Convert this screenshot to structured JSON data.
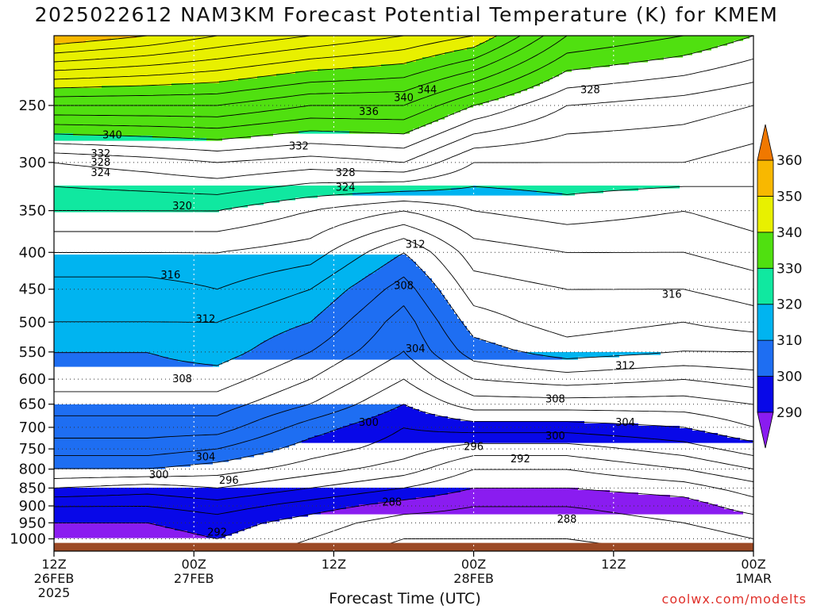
{
  "chart_data": {
    "type": "contour",
    "title": "2025022612 NAM3KM Forecast Potential Temperature (K) for KMEM",
    "xlabel": "Forecast Time (UTC)",
    "credit": "coolwx.com/modelts",
    "y_axis": {
      "quantity": "pressure (hPa)",
      "scale": "log",
      "inverted": true,
      "range": [
        1040,
        200
      ],
      "ticks": [
        250,
        300,
        350,
        400,
        450,
        500,
        550,
        600,
        650,
        700,
        750,
        800,
        850,
        900,
        950,
        1000
      ]
    },
    "x_axis": {
      "range_hours": [
        0,
        60
      ],
      "ticks": [
        {
          "hour": 0,
          "lines": [
            "12Z",
            "26FEB",
            "2025"
          ]
        },
        {
          "hour": 12,
          "lines": [
            "00Z",
            "27FEB"
          ]
        },
        {
          "hour": 24,
          "lines": [
            "12Z"
          ]
        },
        {
          "hour": 36,
          "lines": [
            "00Z",
            "28FEB"
          ]
        },
        {
          "hour": 48,
          "lines": [
            "12Z"
          ]
        },
        {
          "hour": 60,
          "lines": [
            "00Z",
            "1MAR"
          ]
        }
      ]
    },
    "grid": true,
    "contour_interval_K": 2,
    "fill_levels": [
      {
        "lo": 280,
        "hi": 290,
        "color": "#8a1cf0"
      },
      {
        "lo": 290,
        "hi": 300,
        "color": "#0808e8"
      },
      {
        "lo": 300,
        "hi": 310,
        "color": "#1e6ef2"
      },
      {
        "lo": 310,
        "hi": 320,
        "color": "#00b4f0"
      },
      {
        "lo": 320,
        "hi": 330,
        "color": "#10e8a0"
      },
      {
        "lo": 330,
        "hi": 340,
        "color": "#50e010"
      },
      {
        "lo": 340,
        "hi": 350,
        "color": "#e8f000"
      },
      {
        "lo": 350,
        "hi": 360,
        "color": "#f8b800"
      },
      {
        "lo": 360,
        "hi": 400,
        "color": "#f07800"
      }
    ],
    "colorbar_ticks": [
      290,
      300,
      310,
      320,
      330,
      340,
      350,
      360
    ],
    "terrain_color": "#9c4a26",
    "surface_pressure": 1013,
    "profiles": [
      {
        "hour": 0,
        "p": [
          1000,
          950,
          900,
          850,
          800,
          750,
          700,
          650,
          600,
          550,
          500,
          450,
          400,
          350,
          300,
          250,
          200
        ],
        "theta": [
          289,
          290,
          292,
          296,
          300,
          303,
          305,
          307,
          309,
          310,
          312,
          313,
          316,
          320,
          324,
          336,
          352
        ]
      },
      {
        "hour": 8,
        "p": [
          1000,
          950,
          900,
          850,
          800,
          750,
          700,
          650,
          600,
          550,
          500,
          450,
          400,
          350,
          300,
          250,
          200
        ],
        "theta": [
          289,
          290,
          292,
          295,
          300,
          303,
          305,
          307,
          309,
          310,
          312,
          313,
          316,
          320,
          325,
          336,
          350
        ]
      },
      {
        "hour": 14,
        "p": [
          1000,
          950,
          900,
          850,
          800,
          750,
          700,
          650,
          600,
          550,
          500,
          450,
          400,
          350,
          300,
          250,
          200
        ],
        "theta": [
          290,
          291,
          293,
          296,
          299,
          302,
          305,
          307,
          309,
          311,
          312,
          314,
          316,
          320,
          326,
          336,
          348
        ]
      },
      {
        "hour": 22,
        "p": [
          1000,
          950,
          900,
          850,
          800,
          750,
          700,
          650,
          600,
          550,
          500,
          450,
          400,
          350,
          300,
          250,
          200
        ],
        "theta": [
          288,
          289,
          291,
          294,
          297,
          299,
          301,
          304,
          306,
          308,
          310,
          312,
          315,
          318,
          325,
          334,
          346
        ]
      },
      {
        "hour": 30,
        "p": [
          1000,
          950,
          900,
          850,
          800,
          750,
          700,
          650,
          600,
          550,
          500,
          450,
          400,
          350,
          300,
          250,
          200
        ],
        "theta": [
          286,
          287,
          289,
          292,
          295,
          297,
          298,
          300,
          302,
          304,
          305,
          307,
          310,
          316,
          326,
          334,
          344
        ]
      },
      {
        "hour": 36,
        "p": [
          1000,
          950,
          900,
          850,
          800,
          750,
          700,
          650,
          600,
          550,
          500,
          450,
          400,
          350,
          300,
          250,
          200
        ],
        "theta": [
          286,
          287,
          288,
          290,
          292,
          295,
          299,
          303,
          306,
          309,
          311,
          313,
          315,
          318,
          322,
          330,
          342
        ]
      },
      {
        "hour": 44,
        "p": [
          1000,
          950,
          900,
          850,
          800,
          750,
          700,
          650,
          600,
          550,
          500,
          450,
          400,
          350,
          300,
          250,
          200
        ],
        "theta": [
          286,
          287,
          288,
          290,
          292,
          295,
          299,
          303,
          307,
          311,
          313,
          314,
          316,
          319,
          322,
          326,
          334
        ]
      },
      {
        "hour": 54,
        "p": [
          1000,
          950,
          900,
          850,
          800,
          750,
          700,
          650,
          600,
          550,
          500,
          450,
          400,
          350,
          300,
          250,
          200
        ],
        "theta": [
          287,
          288,
          289,
          291,
          294,
          297,
          300,
          303,
          306,
          310,
          312,
          314,
          316,
          318,
          322,
          325,
          332
        ]
      },
      {
        "hour": 60,
        "p": [
          1000,
          950,
          900,
          850,
          800,
          750,
          700,
          650,
          600,
          550,
          500,
          450,
          400,
          350,
          300,
          250,
          200
        ],
        "theta": [
          288,
          289,
          291,
          293,
          296,
          299,
          302,
          304,
          307,
          310,
          313,
          315,
          317,
          319,
          321,
          324,
          330
        ]
      }
    ],
    "contour_labels": [
      {
        "text": "344",
        "hour": 32,
        "p": 238
      },
      {
        "text": "340",
        "hour": 30,
        "p": 244
      },
      {
        "text": "336",
        "hour": 27,
        "p": 255
      },
      {
        "text": "328",
        "hour": 46,
        "p": 238
      },
      {
        "text": "340",
        "hour": 5,
        "p": 275
      },
      {
        "text": "332",
        "hour": 21,
        "p": 285
      },
      {
        "text": "332",
        "hour": 4,
        "p": 292
      },
      {
        "text": "328",
        "hour": 4,
        "p": 300
      },
      {
        "text": "324",
        "hour": 4,
        "p": 310
      },
      {
        "text": "328",
        "hour": 25,
        "p": 310
      },
      {
        "text": "324",
        "hour": 25,
        "p": 325
      },
      {
        "text": "320",
        "hour": 11,
        "p": 345
      },
      {
        "text": "312",
        "hour": 31,
        "p": 390
      },
      {
        "text": "316",
        "hour": 10,
        "p": 430
      },
      {
        "text": "308",
        "hour": 30,
        "p": 445
      },
      {
        "text": "316",
        "hour": 53,
        "p": 458
      },
      {
        "text": "312",
        "hour": 13,
        "p": 495
      },
      {
        "text": "304",
        "hour": 31,
        "p": 545
      },
      {
        "text": "312",
        "hour": 49,
        "p": 575
      },
      {
        "text": "308",
        "hour": 11,
        "p": 600
      },
      {
        "text": "308",
        "hour": 43,
        "p": 640
      },
      {
        "text": "304",
        "hour": 49,
        "p": 690
      },
      {
        "text": "300",
        "hour": 27,
        "p": 690
      },
      {
        "text": "300",
        "hour": 43,
        "p": 720
      },
      {
        "text": "296",
        "hour": 36,
        "p": 745
      },
      {
        "text": "292",
        "hour": 40,
        "p": 775
      },
      {
        "text": "304",
        "hour": 13,
        "p": 770
      },
      {
        "text": "300",
        "hour": 9,
        "p": 815
      },
      {
        "text": "296",
        "hour": 15,
        "p": 830
      },
      {
        "text": "288",
        "hour": 29,
        "p": 890
      },
      {
        "text": "288",
        "hour": 44,
        "p": 940
      },
      {
        "text": "292",
        "hour": 14,
        "p": 980
      }
    ]
  }
}
